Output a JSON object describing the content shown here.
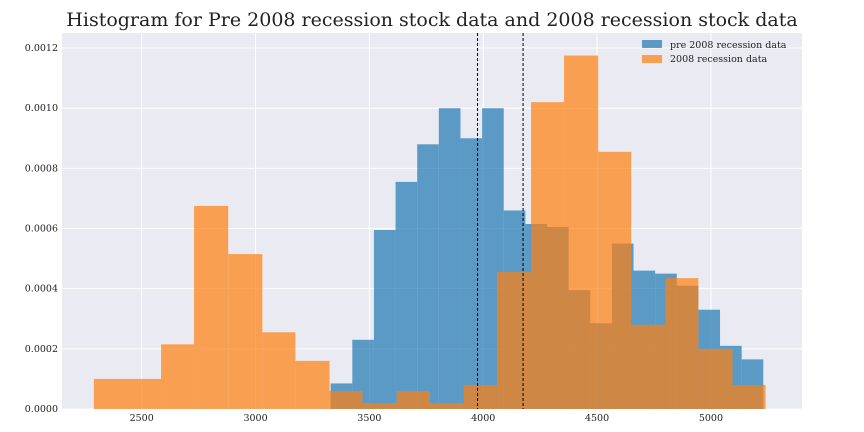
{
  "chart_data": {
    "type": "bar",
    "title": "Histogram for Pre 2008 recession stock data and 2008 recession stock data",
    "xlabel": "",
    "ylabel": "",
    "xlim": [
      2150,
      5400
    ],
    "ylim": [
      0,
      0.00125
    ],
    "xticks": [
      2500,
      3000,
      3500,
      4000,
      4500,
      5000
    ],
    "yticks": [
      0.0,
      0.0002,
      0.0004,
      0.0006,
      0.0008,
      0.001,
      0.0012
    ],
    "ytick_labels": [
      "0.0000",
      "0.0002",
      "0.0004",
      "0.0006",
      "0.0008",
      "0.0010",
      "0.0012"
    ],
    "grid": true,
    "legend": "top-right",
    "vlines": [
      3975,
      4175
    ],
    "series": [
      {
        "name": "pre 2008 recession data",
        "color": "#1f77b4",
        "bins": [
          [
            3330,
            3425,
            8.5e-05
          ],
          [
            3425,
            3520,
            0.00023
          ],
          [
            3520,
            3615,
            0.000595
          ],
          [
            3615,
            3710,
            0.000755
          ],
          [
            3710,
            3805,
            0.00088
          ],
          [
            3805,
            3900,
            0.001
          ],
          [
            3900,
            3995,
            0.0009
          ],
          [
            3995,
            4090,
            0.001
          ],
          [
            4090,
            4185,
            0.00066
          ],
          [
            4185,
            4280,
            0.000615
          ],
          [
            4280,
            4375,
            0.000605
          ],
          [
            4375,
            4470,
            0.000395
          ],
          [
            4470,
            4565,
            0.000285
          ],
          [
            4565,
            4660,
            0.00055
          ],
          [
            4660,
            4755,
            0.00046
          ],
          [
            4755,
            4850,
            0.00045
          ],
          [
            4850,
            4945,
            0.00041
          ],
          [
            4945,
            5040,
            0.00033
          ],
          [
            5040,
            5135,
            0.00021
          ],
          [
            5135,
            5230,
            0.000165
          ]
        ]
      },
      {
        "name": "2008 recession data",
        "color": "#ff7f0e",
        "bins": [
          [
            2290,
            2585,
            0.0001
          ],
          [
            2585,
            2730,
            0.000215
          ],
          [
            2730,
            2880,
            0.000675
          ],
          [
            2880,
            3030,
            0.000515
          ],
          [
            3030,
            3175,
            0.000255
          ],
          [
            3175,
            3325,
            0.00016
          ],
          [
            3325,
            3470,
            6e-05
          ],
          [
            3470,
            3620,
            2e-05
          ],
          [
            3620,
            3765,
            6e-05
          ],
          [
            3765,
            3915,
            2e-05
          ],
          [
            3915,
            4060,
            8e-05
          ],
          [
            4060,
            4210,
            0.000455
          ],
          [
            4210,
            4355,
            0.00102
          ],
          [
            4355,
            4505,
            0.001175
          ],
          [
            4505,
            4650,
            0.000855
          ],
          [
            4650,
            4800,
            0.00028
          ],
          [
            4800,
            4945,
            0.000435
          ],
          [
            4945,
            5095,
            0.0002
          ],
          [
            5095,
            5240,
            8e-05
          ]
        ]
      }
    ]
  }
}
